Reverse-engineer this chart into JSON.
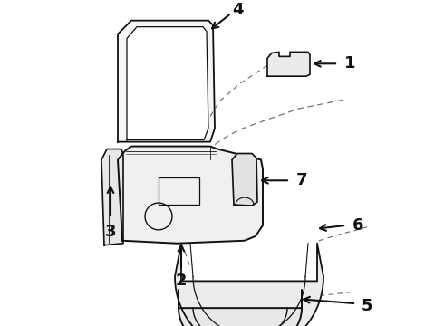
{
  "background_color": "#ffffff",
  "line_color": "#111111",
  "dashed_color": "#666666",
  "fig_width": 4.9,
  "fig_height": 3.6,
  "dpi": 100
}
